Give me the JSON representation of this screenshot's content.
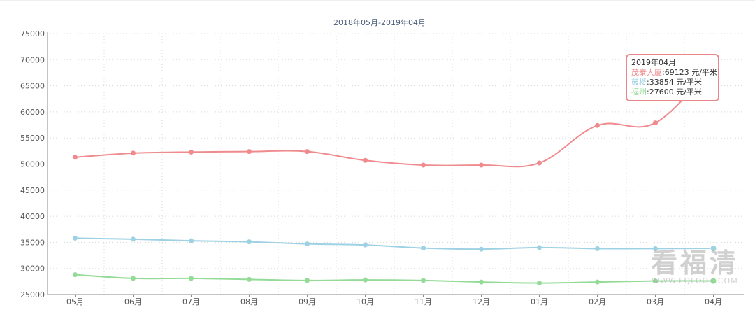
{
  "chart_data": {
    "type": "line",
    "title": "2018年05月-2019年04月",
    "categories": [
      "05月",
      "06月",
      "07月",
      "08月",
      "09月",
      "10月",
      "11月",
      "12月",
      "01月",
      "02月",
      "03月",
      "04月"
    ],
    "ylim": [
      25000,
      75000
    ],
    "yticks": [
      75000,
      70000,
      65000,
      60000,
      55000,
      50000,
      45000,
      40000,
      35000,
      30000,
      25000
    ],
    "grid": true,
    "unit": "元/平米",
    "series": [
      {
        "name": "茂泰大厦",
        "color": "#ef8a8d",
        "values": [
          51300,
          52100,
          52300,
          52400,
          52400,
          50700,
          49800,
          49800,
          50200,
          57400,
          57900,
          69123
        ]
      },
      {
        "name": "鼓楼",
        "color": "#9dd1e3",
        "values": [
          35800,
          35600,
          35300,
          35100,
          34700,
          34500,
          33900,
          33700,
          34000,
          33800,
          33800,
          33854
        ]
      },
      {
        "name": "福州",
        "color": "#94db98",
        "values": [
          28800,
          28100,
          28100,
          27900,
          27700,
          27800,
          27700,
          27400,
          27200,
          27400,
          27600,
          27600
        ]
      }
    ]
  },
  "tooltip": {
    "header": "2019年04月",
    "rows": [
      {
        "name": "茂泰大厦",
        "value": ":69123 元/平米",
        "color": "#ef8a8d"
      },
      {
        "name": "鼓楼",
        "value": ":33854 元/平米",
        "color": "#9dd1e3"
      },
      {
        "name": "福州",
        "value": ":27600 元/平米",
        "color": "#94db98"
      }
    ]
  },
  "watermark": {
    "text": "看福清",
    "url": "WWW.FQLOOK.COM"
  }
}
